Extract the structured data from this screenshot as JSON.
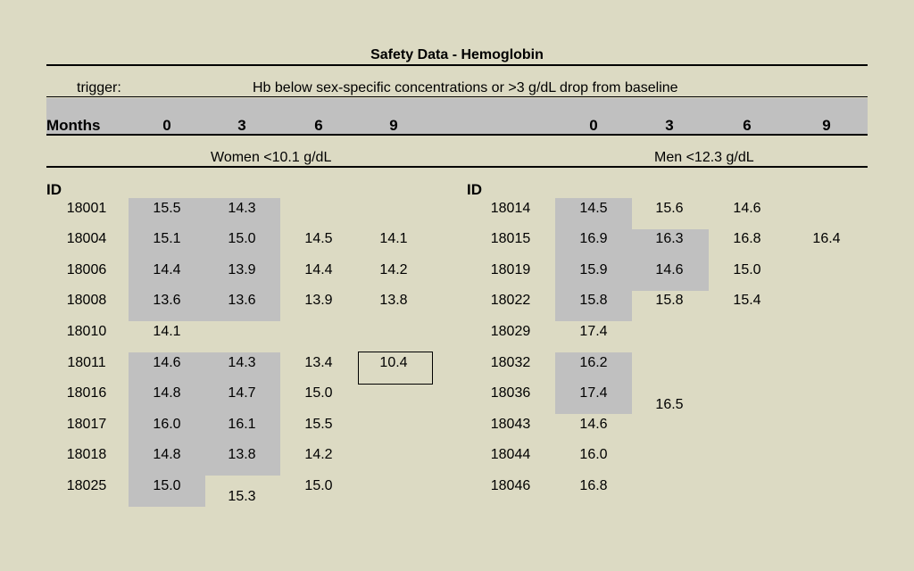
{
  "title": "Safety Data - Hemoglobin",
  "trigger_label": "trigger:",
  "trigger_text": "Hb below sex-specific concentrations or >3 g/dL drop from baseline",
  "months_label": "Months",
  "women_months": [
    "0",
    "3",
    "6",
    "9"
  ],
  "men_months": [
    "0",
    "3",
    "6",
    "9"
  ],
  "women_label": "Women <10.1 g/dL",
  "men_label": "Men <12.3 g/dL",
  "id_label": "ID",
  "women": [
    {
      "id": "18001",
      "m0": "15.5",
      "m3": "14.3",
      "m6": "",
      "m9": ""
    },
    {
      "id": "18004",
      "m0": "15.1",
      "m3": "15.0",
      "m6": "14.5",
      "m9": "14.1"
    },
    {
      "id": "18006",
      "m0": "14.4",
      "m3": "13.9",
      "m6": "14.4",
      "m9": "14.2"
    },
    {
      "id": "18008",
      "m0": "13.6",
      "m3": "13.6",
      "m6": "13.9",
      "m9": "13.8"
    },
    {
      "id": "18010",
      "m0": "14.1",
      "m3": "",
      "m6": "",
      "m9": ""
    },
    {
      "id": "18011",
      "m0": "14.6",
      "m3": "14.3",
      "m6": "13.4",
      "m9": "10.4"
    },
    {
      "id": "18016",
      "m0": "14.8",
      "m3": "14.7",
      "m6": "15.0",
      "m9": ""
    },
    {
      "id": "18017",
      "m0": "16.0",
      "m3": "16.1",
      "m6": "15.5",
      "m9": ""
    },
    {
      "id": "18018",
      "m0": "14.8",
      "m3": "13.8",
      "m6": "14.2",
      "m9": ""
    },
    {
      "id": "18025",
      "m0": "15.0",
      "m3": "15.3",
      "m6": "15.0",
      "m9": ""
    }
  ],
  "men": [
    {
      "id": "18014",
      "m0": "14.5",
      "m3": "15.6",
      "m6": "14.6",
      "m9": ""
    },
    {
      "id": "18015",
      "m0": "16.9",
      "m3": "16.3",
      "m6": "16.8",
      "m9": "16.4"
    },
    {
      "id": "18019",
      "m0": "15.9",
      "m3": "14.6",
      "m6": "15.0",
      "m9": ""
    },
    {
      "id": "18022",
      "m0": "15.8",
      "m3": "15.8",
      "m6": "15.4",
      "m9": ""
    },
    {
      "id": "18029",
      "m0": "17.4",
      "m3": "",
      "m6": "",
      "m9": ""
    },
    {
      "id": "18032",
      "m0": "16.2",
      "m3": "",
      "m6": "",
      "m9": ""
    },
    {
      "id": "18036",
      "m0": "17.4",
      "m3": "16.5",
      "m6": "",
      "m9": ""
    },
    {
      "id": "18043",
      "m0": "14.6",
      "m3": "",
      "m6": "",
      "m9": ""
    },
    {
      "id": "18044",
      "m0": "16.0",
      "m3": "",
      "m6": "",
      "m9": ""
    },
    {
      "id": "18046",
      "m0": "16.8",
      "m3": "",
      "m6": "",
      "m9": ""
    }
  ]
}
